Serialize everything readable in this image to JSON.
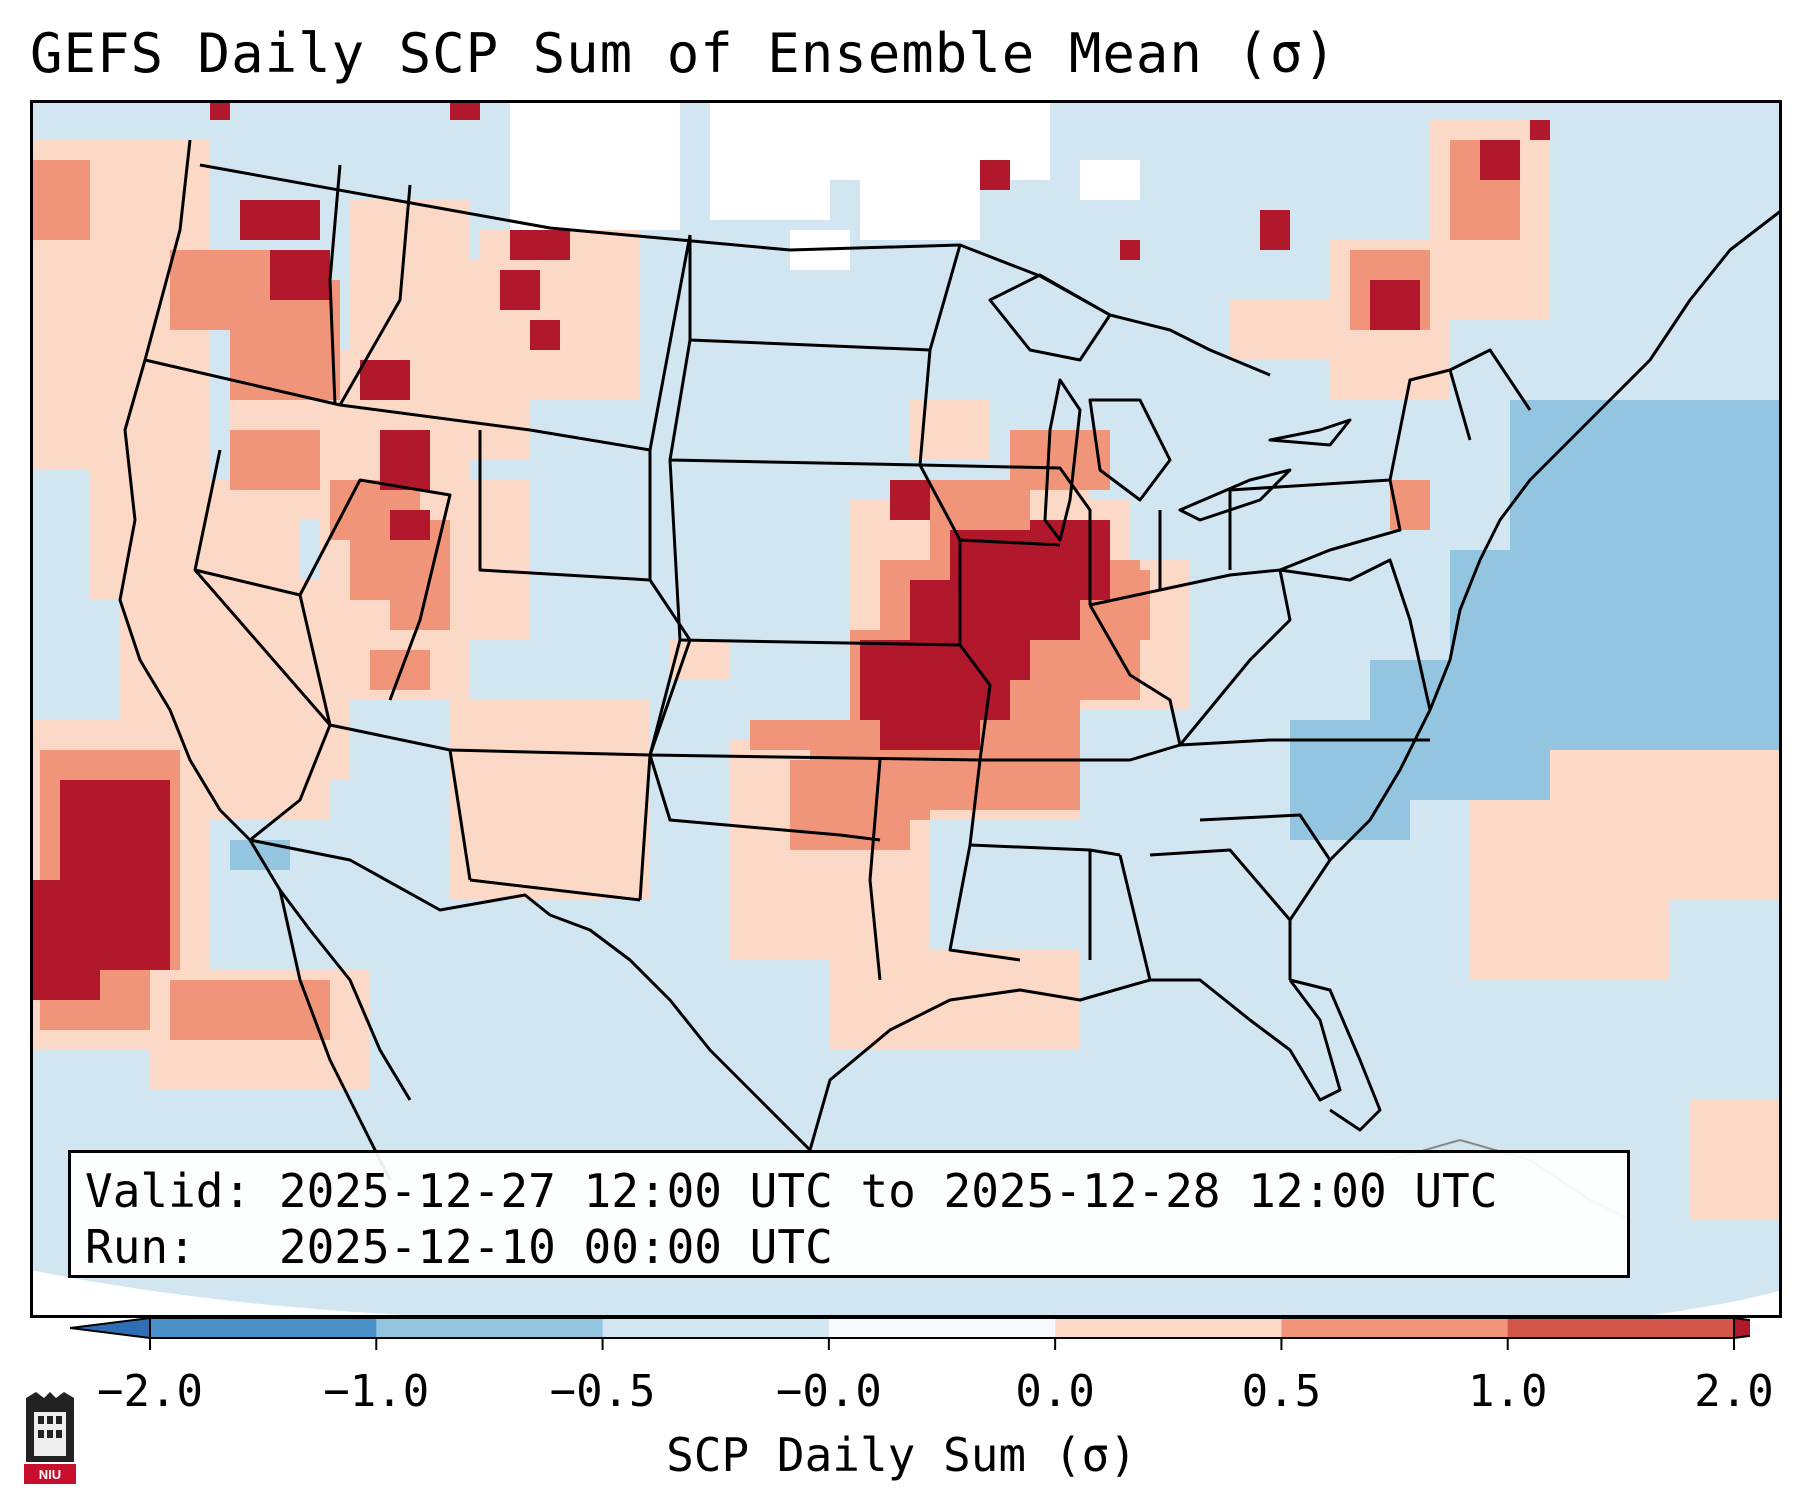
{
  "title": "GEFS Daily SCP Sum of Ensemble Mean (σ)",
  "info": {
    "valid_label": "Valid:",
    "valid_value": "2025-12-27 12:00 UTC to 2025-12-28 12:00 UTC",
    "run_label": "Run:",
    "run_value": "2025-12-10 00:00 UTC"
  },
  "colorbar": {
    "label": "SCP Daily Sum (σ)",
    "ticks": [
      "−2.0",
      "−1.0",
      "−0.5",
      "−0.0",
      "0.0",
      "0.5",
      "1.0",
      "2.0"
    ],
    "bin_colors": [
      "#4a90c8",
      "#93c4e0",
      "#d2e6f2",
      "#f7f9fc",
      "#fcd9c6",
      "#f0957a",
      "#d4564a"
    ],
    "under_color": "#2f6db5",
    "over_color": "#b2182b"
  },
  "logo": {
    "text": "NIU"
  },
  "map_colors": {
    "ocean_land": "#d2e6f2",
    "missing": "#ffffff",
    "light_red": "#fcd9c6",
    "mid_red": "#f0957a",
    "dark_red": "#b2182b",
    "mid_blue": "#93c4e0"
  }
}
